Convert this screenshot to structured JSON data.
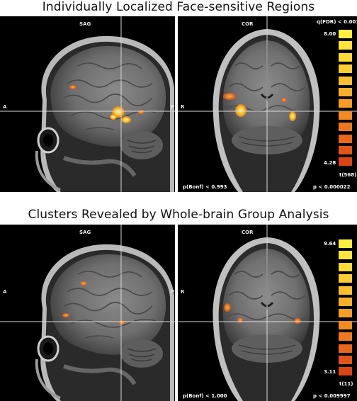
{
  "section1": {
    "title": "Individually Localized Face-sensitive Regions",
    "sag": {
      "view_label": "SAG",
      "left_label": "A",
      "right_label": "P"
    },
    "cor": {
      "view_label": "COR",
      "left_label": "R"
    },
    "scale": {
      "threshold_label": "q(FDR) < 0.001",
      "max_label": "8.00",
      "min_label": "4.28",
      "stat_label": "t(568)",
      "colors": [
        "#ffef3d",
        "#ffe43a",
        "#ffd935",
        "#ffcc31",
        "#fdbd2d",
        "#f9ad2a",
        "#f69b26",
        "#f38a22",
        "#ef781f",
        "#e9661b",
        "#e35418",
        "#dc4414"
      ]
    },
    "bottom_left": "p(Bonf) < 0.993",
    "bottom_right": "p < 0.000022"
  },
  "section2": {
    "title": "Clusters Revealed by Whole-brain Group Analysis",
    "sag": {
      "view_label": "SAG",
      "left_label": "A",
      "right_label": "P"
    },
    "cor": {
      "view_label": "COR",
      "left_label": "R"
    },
    "scale": {
      "max_label": "9.64",
      "min_label": "3.11",
      "stat_label": "t(11)",
      "colors": [
        "#ffef3d",
        "#ffe43a",
        "#ffd935",
        "#ffcc31",
        "#fdbd2d",
        "#f9ad2a",
        "#f69b26",
        "#f38a22",
        "#ef781f",
        "#e9661b",
        "#e35418",
        "#dc4414"
      ]
    },
    "bottom_left": "p(Bonf) < 1.000",
    "bottom_right": "p < 0.009997"
  }
}
